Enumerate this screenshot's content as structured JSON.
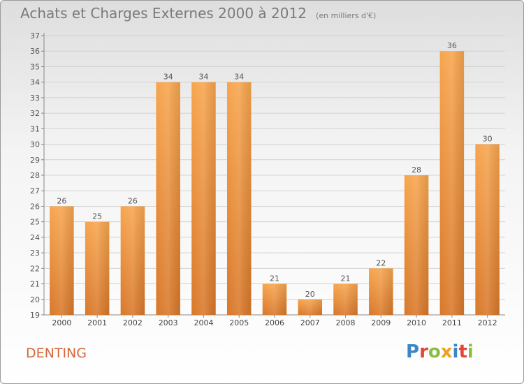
{
  "header": {
    "title": "Achats et Charges Externes 2000 à 2012",
    "subtitle": "(en milliers d'€)"
  },
  "footer": {
    "commune": "DENTING",
    "logo_text": "Proxiti",
    "logo_letter_colors": [
      "#3a86c8",
      "#e0473a",
      "#8cbd3f",
      "#f0a21e",
      "#3a86c8",
      "#e0473a",
      "#8cbd3f"
    ]
  },
  "chart_data": {
    "type": "bar",
    "categories": [
      "2000",
      "2001",
      "2002",
      "2003",
      "2004",
      "2005",
      "2006",
      "2007",
      "2008",
      "2009",
      "2010",
      "2011",
      "2012"
    ],
    "values": [
      26,
      25,
      26,
      34,
      34,
      34,
      21,
      20,
      21,
      22,
      28,
      36,
      30
    ],
    "ylim": [
      19,
      37
    ],
    "yticks": [
      19,
      20,
      21,
      22,
      23,
      24,
      25,
      26,
      27,
      28,
      29,
      30,
      31,
      32,
      33,
      34,
      35,
      36,
      37
    ],
    "grid": true,
    "bar_color_top": "#f7a54e",
    "bar_color_bottom": "#d9782a",
    "title": "Achats et Charges Externes 2000 à 2012",
    "xlabel": "",
    "ylabel": ""
  }
}
